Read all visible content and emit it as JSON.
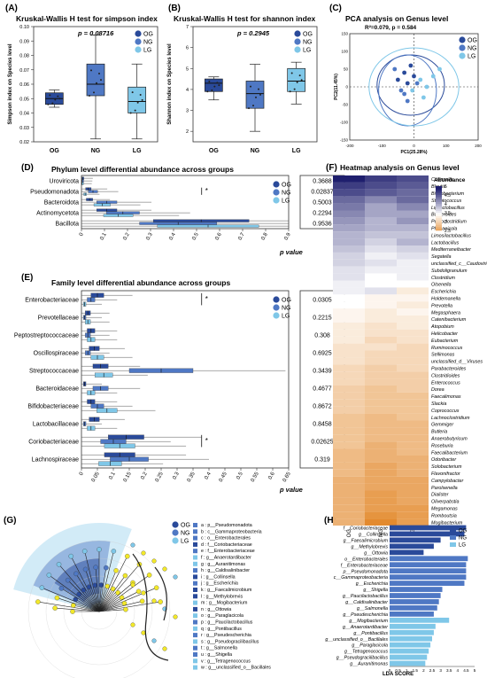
{
  "colors": {
    "og": "#2a4a9a",
    "ng": "#4f78c4",
    "lg": "#7fc7e8",
    "heat_hi": "#1f1f6e",
    "heat_mid": "#ffffff",
    "heat_lo": "#e38a2e",
    "dot": "#f2e82a"
  },
  "panels": {
    "A": {
      "label": "(A)",
      "title": "Kruskal-Wallis H test for simpson index",
      "pvalue": "p = 0.08716"
    },
    "B": {
      "label": "(B)",
      "title": "Kruskal-Wallis H test for shannon index",
      "pvalue": "p = 0.2945"
    },
    "C": {
      "label": "(C)",
      "title": "PCA analysis on Genus level",
      "subtitle": "R²=0.079, p = 0.584"
    },
    "D": {
      "label": "(D)",
      "title": "Phylum level differential abundance across groups",
      "pcol": "p value"
    },
    "E": {
      "label": "(E)",
      "title": "Family level differential abundance across groups",
      "pcol": "p value"
    },
    "F": {
      "label": "(F)",
      "title": "Heatmap analysis on Genus level",
      "legend_title": "Abundance"
    },
    "G": {
      "label": "(G)"
    },
    "H": {
      "label": "(H)",
      "xlabel": "LDA SCORE"
    }
  },
  "groups": [
    "OG",
    "NG",
    "LG"
  ],
  "chart_data": [
    {
      "id": "A",
      "type": "box",
      "ylabel": "Simpson index on Species level",
      "ylim": [
        0.02,
        0.1
      ],
      "yticks": [
        "0.02",
        "0.03",
        "0.04",
        "0.05",
        "0.06",
        "0.07",
        "0.08",
        "0.09",
        "0.10"
      ],
      "categories": [
        "OG",
        "NG",
        "LG"
      ],
      "boxes": [
        {
          "q1": 0.046,
          "med": 0.05,
          "q3": 0.054,
          "min": 0.044,
          "max": 0.056
        },
        {
          "q1": 0.052,
          "med": 0.06,
          "q3": 0.074,
          "min": 0.022,
          "max": 0.094
        },
        {
          "q1": 0.04,
          "med": 0.048,
          "q3": 0.058,
          "min": 0.022,
          "max": 0.074
        }
      ]
    },
    {
      "id": "B",
      "type": "box",
      "ylabel": "Shannon index on Species level",
      "ylim": [
        1.5,
        7
      ],
      "yticks": [
        "2",
        "3",
        "4",
        "5",
        "6",
        "7"
      ],
      "categories": [
        "OG",
        "NG",
        "LG"
      ],
      "boxes": [
        {
          "q1": 3.9,
          "med": 4.3,
          "q3": 4.5,
          "min": 3.5,
          "max": 4.6
        },
        {
          "q1": 3.1,
          "med": 3.8,
          "q3": 4.4,
          "min": 2.0,
          "max": 5.2
        },
        {
          "q1": 3.9,
          "med": 4.4,
          "q3": 5.0,
          "min": 3.3,
          "max": 5.3
        }
      ]
    },
    {
      "id": "C",
      "type": "scatter",
      "xlabel": "PC1(25.28%)",
      "ylabel": "PC2(11.45%)",
      "xlim": [
        -200,
        200
      ],
      "ylim": [
        -150,
        150
      ],
      "xticks": [
        "-200",
        "-100",
        "0",
        "100",
        "200"
      ],
      "yticks": [
        "-150",
        "-100",
        "-50",
        "0",
        "50",
        "100",
        "150"
      ]
    },
    {
      "id": "D",
      "type": "bar",
      "categories": [
        "Uroviricota",
        "Pseudomonadota",
        "Bacteroidota",
        "Actinomycetota",
        "Bacillota"
      ],
      "xticks": [
        "0",
        "0.1",
        "0.2",
        "0.3",
        "0.4",
        "0.5",
        "0.6",
        "0.7",
        "0.8",
        "0.9"
      ],
      "xlim": [
        0,
        0.9
      ],
      "series": [
        {
          "name": "OG",
          "values": [
            0.004,
            0.03,
            0.035,
            0.11,
            0.52
          ]
        },
        {
          "name": "NG",
          "values": [
            0.003,
            0.05,
            0.11,
            0.18,
            0.42
          ]
        },
        {
          "name": "LG",
          "values": [
            0.002,
            0.016,
            0.09,
            0.16,
            0.55
          ]
        }
      ],
      "pvalues": [
        "0.3688",
        "0.02837",
        "0.5003",
        "0.2294",
        "0.9536"
      ]
    },
    {
      "id": "E",
      "type": "bar",
      "categories": [
        "Enterobacteriaceae",
        "Prevotellaceae",
        "Peptostreptococcaceae",
        "Oscillospiraceae",
        "Streptococcaceae",
        "Bacteroidaceae",
        "Bifidobacteriaceae",
        "Lactobacillaceae",
        "Coriobacteriaceae",
        "Lachnospiraceae"
      ],
      "xticks": [
        "0",
        "0.05",
        "0.1",
        "0.15",
        "0.2",
        "0.25",
        "0.3",
        "0.35",
        "0.4",
        "0.45",
        "0.5",
        "0.55",
        "0.6",
        "0.65"
      ],
      "xlim": [
        0,
        0.65
      ],
      "series": [
        {
          "name": "OG",
          "values": [
            0.05,
            0.02,
            0.03,
            0.04,
            0.06,
            0.01,
            0.03,
            0.04,
            0.14,
            0.12
          ]
        },
        {
          "name": "NG",
          "values": [
            0.03,
            0.01,
            0.02,
            0.02,
            0.25,
            0.06,
            0.05,
            0.01,
            0.1,
            0.15
          ]
        },
        {
          "name": "LG",
          "values": [
            0.01,
            0.02,
            0.03,
            0.05,
            0.07,
            0.03,
            0.08,
            0.03,
            0.12,
            0.09
          ]
        }
      ],
      "pvalues": [
        "0.0305",
        "0.2215",
        "0.308",
        "0.6925",
        "0.3439",
        "0.4677",
        "0.8672",
        "0.8458",
        "0.02625",
        "0.319"
      ]
    },
    {
      "id": "F",
      "type": "heatmap",
      "columns": [
        "OG",
        "NG",
        "LG"
      ],
      "legend_ticks": [
        "5",
        "4.5",
        "4",
        "3.5",
        "3",
        "2.5"
      ],
      "rows": [
        "Collinsella",
        "Blautia",
        "Bifidobacterium",
        "Streptococcus",
        "Ligilactobacillus",
        "Bacteroides",
        "Peptoclostridium",
        "Phocaeicola",
        "Limosilactobacillus",
        "Lactobacillus",
        "Mediterraneibacter",
        "Segatella",
        "unclassified_c__Caudoviricetes",
        "Subdoligranulum",
        "Clostridium",
        "Olsenella",
        "Escherichia",
        "Holdemanella",
        "Prevotella",
        "Megasphaera",
        "Catenibacterium",
        "Atopobium",
        "Helicobacter",
        "Eubacterium",
        "Ruminococcus",
        "Sellimonas",
        "unclassified_d__Viruses",
        "Parabacteroides",
        "Clostridioides",
        "Enterococcus",
        "Dorea",
        "Faecalimonas",
        "Slackia",
        "Coprococcus",
        "Lachnoclostridium",
        "Gemmiger",
        "Butleria",
        "Anaerobutyricum",
        "Roseburia",
        "Faecalibacterium",
        "Odoribacter",
        "Solobacterium",
        "Flavonifractor",
        "Campylobacter",
        "Parolsenella",
        "Dialister",
        "Oliverpabstia",
        "Megamonas",
        "Romboutsia",
        "Mogibacterium"
      ],
      "values": [
        [
          4.9,
          4.7,
          4.6
        ],
        [
          4.7,
          4.6,
          4.5
        ],
        [
          4.6,
          4.5,
          4.4
        ],
        [
          4.4,
          4.2,
          4.4
        ],
        [
          4.3,
          4.0,
          4.2
        ],
        [
          4.2,
          4.0,
          4.0
        ],
        [
          4.1,
          3.9,
          4.1
        ],
        [
          4.0,
          3.9,
          3.9
        ],
        [
          3.9,
          3.8,
          3.8
        ],
        [
          3.9,
          3.7,
          3.9
        ],
        [
          3.8,
          3.6,
          3.7
        ],
        [
          3.7,
          3.5,
          3.6
        ],
        [
          3.7,
          3.6,
          3.5
        ],
        [
          3.6,
          3.5,
          3.5
        ],
        [
          3.6,
          3.4,
          3.5
        ],
        [
          3.5,
          3.4,
          3.4
        ],
        [
          3.5,
          3.6,
          3.2
        ],
        [
          3.4,
          3.3,
          3.3
        ],
        [
          3.4,
          3.3,
          3.2
        ],
        [
          3.3,
          3.2,
          3.3
        ],
        [
          3.3,
          3.2,
          3.2
        ],
        [
          3.2,
          3.1,
          3.2
        ],
        [
          3.2,
          3.1,
          3.1
        ],
        [
          3.2,
          3.0,
          3.1
        ],
        [
          3.1,
          3.1,
          3.0
        ],
        [
          3.1,
          3.0,
          3.0
        ],
        [
          3.1,
          3.0,
          3.0
        ],
        [
          3.0,
          2.9,
          3.0
        ],
        [
          3.0,
          2.9,
          2.9
        ],
        [
          3.0,
          2.9,
          2.9
        ],
        [
          2.9,
          2.8,
          2.9
        ],
        [
          2.9,
          2.8,
          2.8
        ],
        [
          2.9,
          2.8,
          2.8
        ],
        [
          2.9,
          2.8,
          2.8
        ],
        [
          2.8,
          2.7,
          2.8
        ],
        [
          2.8,
          2.7,
          2.7
        ],
        [
          2.8,
          2.7,
          2.7
        ],
        [
          2.8,
          2.7,
          2.7
        ],
        [
          2.8,
          2.6,
          2.7
        ],
        [
          2.7,
          2.6,
          2.7
        ],
        [
          2.7,
          2.6,
          2.6
        ],
        [
          2.7,
          2.5,
          2.6
        ],
        [
          2.7,
          2.5,
          2.6
        ],
        [
          2.6,
          2.5,
          2.5
        ],
        [
          2.6,
          2.5,
          2.5
        ],
        [
          2.6,
          2.4,
          2.5
        ],
        [
          2.6,
          2.4,
          2.5
        ],
        [
          2.6,
          2.4,
          2.4
        ],
        [
          2.6,
          2.3,
          2.4
        ],
        [
          2.6,
          2.2,
          2.4
        ]
      ]
    },
    {
      "id": "H",
      "type": "bar",
      "orientation": "horizontal",
      "xlim": [
        0,
        5
      ],
      "xticks": [
        "0",
        "0.5",
        "1",
        "1.5",
        "2",
        "2.5",
        "3",
        "3.5",
        "4",
        "4.5",
        "5"
      ],
      "categories": [
        "f__Coriobacteriaceae",
        "g__Collinsella",
        "g__Faecalimicrobium",
        "g__Methylobrevis",
        "g__Ottowia",
        "o__Enterobacterales",
        "f__Enterobacteriaceae",
        "p__Pseudomonadota",
        "c__Gammaproteobacteria",
        "g__Escherichia",
        "g__Shigella",
        "g__Paucilactobacillus",
        "g__Caldisalinibacter",
        "g__Salmonella",
        "g__Pseudescherichia",
        "g__Mogibacterium",
        "g__Anaerotardibacter",
        "g__Pontibacillus",
        "g__unclassified_o__Bacillales",
        "g__Paraglacicola",
        "g__Tetragenococcus",
        "g__Pseudogracilibacillus",
        "g__Auranitimonas"
      ],
      "groups": [
        "OG",
        "OG",
        "OG",
        "OG",
        "OG",
        "NG",
        "NG",
        "NG",
        "NG",
        "NG",
        "NG",
        "NG",
        "NG",
        "NG",
        "NG",
        "LG",
        "LG",
        "LG",
        "LG",
        "LG",
        "LG",
        "LG",
        "LG"
      ],
      "values": [
        4.5,
        4.4,
        3.0,
        2.6,
        2.0,
        4.6,
        4.5,
        4.5,
        4.5,
        4.4,
        3.1,
        3.0,
        2.9,
        2.8,
        2.6,
        3.5,
        2.7,
        2.6,
        2.5,
        2.4,
        2.3,
        2.2,
        2.1
      ]
    }
  ],
  "cladogram": {
    "legend": [
      "a : p__Pseudomonadota",
      "b : c__Gammaproteobacteria",
      "c : o__Enterobacterales",
      "d : f__Coriobacteriaceae",
      "e : f__Enterobacteriaceae",
      "f : g__Anaerotardibacter",
      "g : g__Auranitimonas",
      "h : g__Caldisalinibacter",
      "i : g__Collinsella",
      "j : g__Escherichia",
      "k : g__Faecalimicrobium",
      "l : g__Methylobrevis",
      "m : g__Mogibacterium",
      "n : g__Ottowia",
      "o : g__Paraglacicola",
      "p : g__Paucilactobacillus",
      "q : g__Pontibacillus",
      "r : g__Pseudescherichia",
      "s : g__Pseudogracilibacillus",
      "t : g__Salmonella",
      "u : g__Shigella",
      "v : g__Tetragenococcus",
      "w : g__unclassified_o__Bacillales"
    ],
    "legend_colors": [
      "ng",
      "ng",
      "ng",
      "og",
      "ng",
      "lg",
      "lg",
      "ng",
      "og",
      "ng",
      "og",
      "og",
      "lg",
      "og",
      "lg",
      "ng",
      "lg",
      "ng",
      "lg",
      "ng",
      "ng",
      "lg",
      "lg"
    ]
  }
}
